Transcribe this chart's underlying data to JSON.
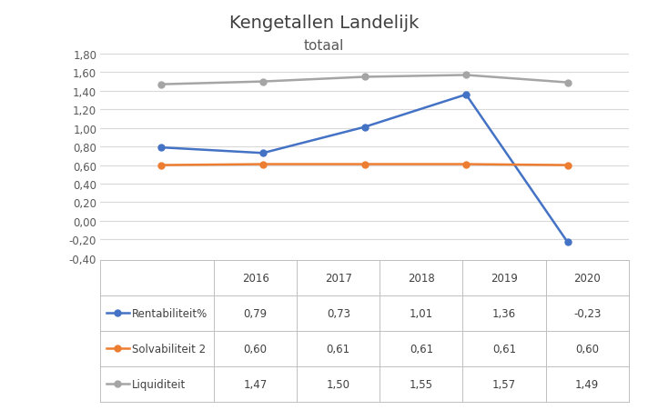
{
  "title_line1": "Kengetallen Landelijk",
  "title_line2": "totaal",
  "years": [
    2016,
    2017,
    2018,
    2019,
    2020
  ],
  "rentabiliteit": [
    0.79,
    0.73,
    1.01,
    1.36,
    -0.23
  ],
  "solvabiliteit": [
    0.6,
    0.61,
    0.61,
    0.61,
    0.6
  ],
  "liquiditeit": [
    1.47,
    1.5,
    1.55,
    1.57,
    1.49
  ],
  "rentabiliteit_color": "#4472C4",
  "solvabiliteit_color": "#ED7D31",
  "liquiditeit_color": "#A5A5A5",
  "rentabiliteit_label": "Rentabiliteit%",
  "solvabiliteit_label": "Solvabiliteit 2",
  "liquiditeit_label": "Liquiditeit",
  "ylim_min": -0.4,
  "ylim_max": 1.9,
  "yticks": [
    -0.4,
    -0.2,
    0.0,
    0.2,
    0.4,
    0.6,
    0.8,
    1.0,
    1.2,
    1.4,
    1.6,
    1.8
  ],
  "ytick_labels": [
    "-0,40",
    "-0,20",
    "0,00",
    "0,20",
    "0,40",
    "0,60",
    "0,80",
    "1,00",
    "1,20",
    "1,40",
    "1,60",
    "1,80"
  ],
  "background_color": "#FFFFFF",
  "grid_color": "#D9D9D9",
  "table_header": [
    "2016",
    "2017",
    "2018",
    "2019",
    "2020"
  ],
  "table_row1": [
    "0,79",
    "0,73",
    "1,01",
    "1,36",
    "-0,23"
  ],
  "table_row2": [
    "0,60",
    "0,61",
    "0,61",
    "0,61",
    "0,60"
  ],
  "table_row3": [
    "1,47",
    "1,50",
    "1,55",
    "1,57",
    "1,49"
  ]
}
